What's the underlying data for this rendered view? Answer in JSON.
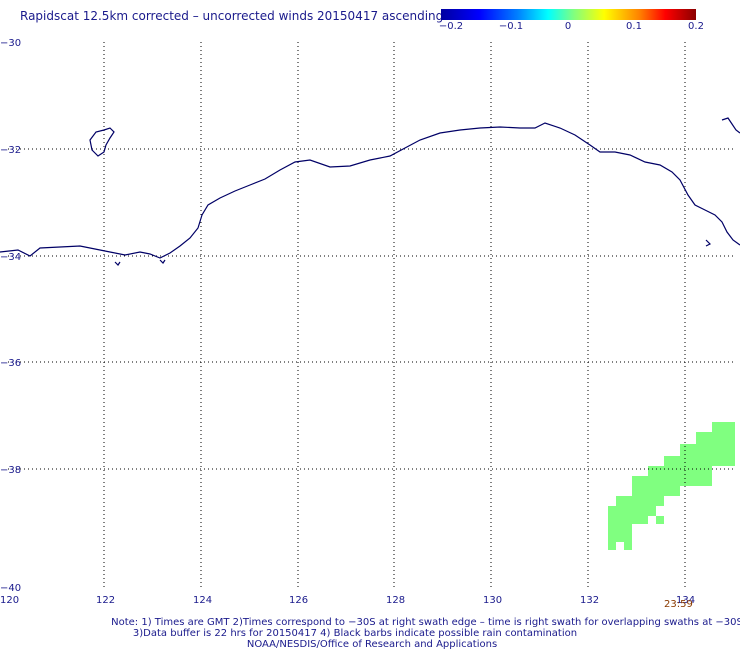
{
  "title": "Rapidscat 12.5km corrected – uncorrected winds 20150417 ascending",
  "colorbar": {
    "labels": [
      "−0.2",
      "−0.1",
      "0",
      "0.1",
      "0.2"
    ],
    "colors": [
      "#0000a0",
      "#0000ff",
      "#00ffff",
      "#80ff80",
      "#ffff00",
      "#ff8000",
      "#ff0000",
      "#8b0000"
    ]
  },
  "map": {
    "lon_range": [
      120,
      135
    ],
    "lat_range": [
      -40,
      -30
    ],
    "lon_ticks": [
      "120",
      "122",
      "124",
      "126",
      "128",
      "130",
      "132",
      "134"
    ],
    "lat_ticks": [
      "−30",
      "−32",
      "−34",
      "−36",
      "−38",
      "−40"
    ],
    "coast_color": "#000066",
    "swath_color": "#80ff80"
  },
  "timestamp": "23:59",
  "notes": {
    "line1": "Note: 1) Times are GMT 2)Times correspond to −30S at right swath edge – time is right swath for overlapping swaths at −30S",
    "line2": "3)Data buffer is 22 hrs for 20150417 4) Black barbs indicate possible rain contamination",
    "line3": "NOAA/NESDIS/Office of Research and Applications"
  }
}
